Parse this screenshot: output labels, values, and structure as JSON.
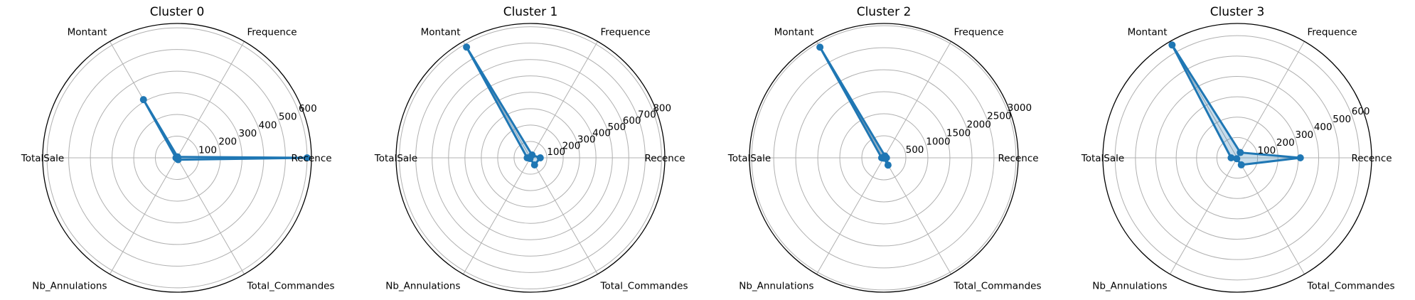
{
  "chart_data": [
    {
      "type": "radar",
      "title": "Cluster 0",
      "categories": [
        "Recence",
        "Frequence",
        "Montant",
        "TotalSale",
        "Nb_Annulations",
        "Total_Commandes"
      ],
      "values": [
        600,
        5,
        310,
        5,
        3,
        10
      ],
      "rticks": [
        100,
        200,
        300,
        400,
        500,
        600
      ],
      "rlim": [
        0,
        620
      ],
      "grid": true,
      "color": "#1f77b4"
    },
    {
      "type": "radar",
      "title": "Cluster 1",
      "categories": [
        "Recence",
        "Frequence",
        "Montant",
        "TotalSale",
        "Nb_Annulations",
        "Total_Commandes"
      ],
      "values": [
        60,
        20,
        780,
        20,
        5,
        50
      ],
      "rticks": [
        100,
        200,
        300,
        400,
        500,
        600,
        700,
        800
      ],
      "rlim": [
        0,
        820
      ],
      "grid": true,
      "color": "#1f77b4"
    },
    {
      "type": "radar",
      "title": "Cluster 2",
      "categories": [
        "Recence",
        "Frequence",
        "Montant",
        "TotalSale",
        "Nb_Annulations",
        "Total_Commandes"
      ],
      "values": [
        60,
        50,
        2900,
        50,
        10,
        190
      ],
      "rticks": [
        500,
        1000,
        1500,
        2000,
        2500,
        3000
      ],
      "rlim": [
        0,
        3050
      ],
      "grid": true,
      "color": "#1f77b4"
    },
    {
      "type": "radar",
      "title": "Cluster 3",
      "categories": [
        "Recence",
        "Frequence",
        "Montant",
        "TotalSale",
        "Nb_Annulations",
        "Total_Commandes"
      ],
      "values": [
        310,
        30,
        640,
        30,
        5,
        40
      ],
      "rticks": [
        100,
        200,
        300,
        400,
        500,
        600
      ],
      "rlim": [
        0,
        660
      ],
      "grid": true,
      "color": "#1f77b4"
    }
  ]
}
